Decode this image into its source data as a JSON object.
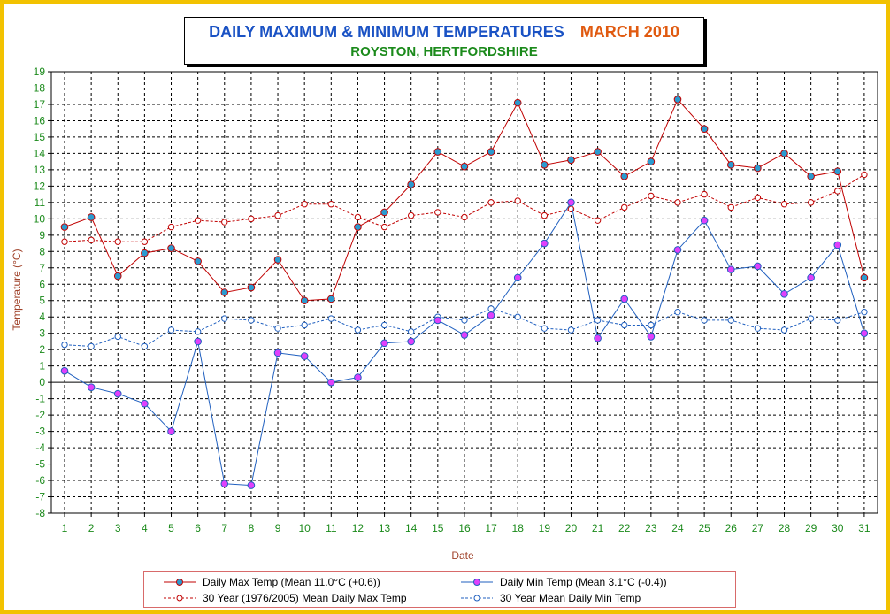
{
  "title": {
    "main": "DAILY MAXIMUM &  MINIMUM  TEMPERATURES",
    "month": "MARCH 2010",
    "location": "ROYSTON, HERTFORDSHIRE"
  },
  "colors": {
    "frame": "#f2c200",
    "max_series": "#c00000",
    "min_series": "#1f5fbf",
    "marker_max": "#2a9bd0",
    "marker_min": "#e040fb",
    "axis_text_x": "#1b8a1b",
    "axis_text_y": "#1b8a1b",
    "axis_label": "#a0422a"
  },
  "legend": {
    "max": "Daily Max Temp (Mean 11.0°C (+0.6))",
    "min": "Daily Min Temp (Mean 3.1°C (-0.4))",
    "mean_max": "30 Year (1976/2005) Mean Daily Max Temp",
    "mean_min": "30 Year Mean Daily Min Temp"
  },
  "chart_data": {
    "type": "line",
    "title": "DAILY MAXIMUM &  MINIMUM  TEMPERATURES  MARCH 2010",
    "subtitle": "ROYSTON, HERTFORDSHIRE",
    "xlabel": "Date",
    "ylabel": "Temperature (°C)",
    "ylim": [
      -8,
      19
    ],
    "xlim": [
      1,
      31
    ],
    "grid": true,
    "legend_position": "bottom",
    "x": [
      1,
      2,
      3,
      4,
      5,
      6,
      7,
      8,
      9,
      10,
      11,
      12,
      13,
      14,
      15,
      16,
      17,
      18,
      19,
      20,
      21,
      22,
      23,
      24,
      25,
      26,
      27,
      28,
      29,
      30,
      31
    ],
    "series": [
      {
        "name": "Daily Max Temp (Mean 11.0°C (+0.6))",
        "style": "solid",
        "values": [
          9.5,
          10.1,
          6.5,
          7.9,
          8.2,
          7.4,
          5.5,
          5.8,
          7.5,
          5.0,
          5.1,
          9.5,
          10.4,
          12.1,
          14.1,
          13.2,
          14.1,
          17.1,
          13.3,
          13.6,
          14.1,
          12.6,
          13.5,
          17.3,
          15.5,
          13.3,
          13.1,
          14.0,
          12.6,
          12.9,
          6.4
        ]
      },
      {
        "name": "Daily Min Temp (Mean 3.1°C (-0.4))",
        "style": "solid",
        "values": [
          0.7,
          -0.3,
          -0.7,
          -1.3,
          -3.0,
          2.5,
          -6.2,
          -6.3,
          1.8,
          1.6,
          0.0,
          0.3,
          2.4,
          2.5,
          3.8,
          2.9,
          4.1,
          6.4,
          8.5,
          11.0,
          2.7,
          5.1,
          2.8,
          8.1,
          9.9,
          6.9,
          7.1,
          5.4,
          6.4,
          8.4,
          3.0
        ]
      },
      {
        "name": "30 Year (1976/2005) Mean Daily Max Temp",
        "style": "dashed",
        "values": [
          8.6,
          8.7,
          8.6,
          8.6,
          9.5,
          9.9,
          9.8,
          10.0,
          10.2,
          10.9,
          10.9,
          10.1,
          9.5,
          10.2,
          10.4,
          10.1,
          11.0,
          11.1,
          10.2,
          10.6,
          9.9,
          10.7,
          11.4,
          11.0,
          11.5,
          10.7,
          11.3,
          10.9,
          11.0,
          11.7,
          12.7
        ]
      },
      {
        "name": "30 Year Mean Daily Min Temp",
        "style": "dashed",
        "values": [
          2.3,
          2.2,
          2.8,
          2.2,
          3.2,
          3.1,
          3.9,
          3.8,
          3.3,
          3.5,
          3.9,
          3.2,
          3.5,
          3.1,
          4.0,
          3.8,
          4.5,
          4.0,
          3.3,
          3.2,
          3.8,
          3.5,
          3.5,
          4.3,
          3.8,
          3.8,
          3.3,
          3.2,
          3.9,
          3.8,
          4.3
        ]
      }
    ]
  }
}
